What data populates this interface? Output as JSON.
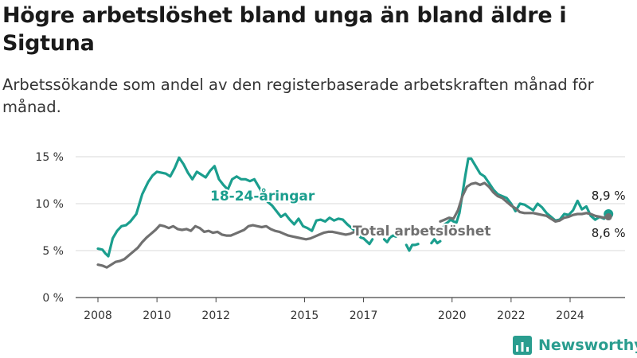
{
  "title": "Högre arbetslöshet bland unga än bland äldre i Sigtuna",
  "subtitle": "Arbetssökande som andel av den registerbaserade arbetskraften månad för månad.",
  "brand": {
    "name": "Newsworthy",
    "color": "#2a9d8f",
    "icon": "bar-chart-logo-icon"
  },
  "chart_data": {
    "type": "line",
    "ylim": [
      0,
      15
    ],
    "yticks": [
      0,
      5,
      10,
      15
    ],
    "ytick_labels": [
      "0 %",
      "5 %",
      "10 %",
      "15 %"
    ],
    "xlim": [
      2007.75,
      2025.4
    ],
    "xticks": [
      2008,
      2010,
      2012,
      2015,
      2017,
      2020,
      2022,
      2024
    ],
    "xtick_labels": [
      "2008",
      "2010",
      "2012",
      "2015",
      "2017",
      "2020",
      "2022",
      "2024"
    ],
    "grid": true,
    "series": [
      {
        "name": "18-24-åringar",
        "color": "#1b9e8e",
        "end_label": "8,9 %",
        "segments": [
          [
            [
              2008.0,
              5.2
            ],
            [
              2008.15,
              5.1
            ],
            [
              2008.25,
              4.7
            ],
            [
              2008.35,
              4.4
            ],
            [
              2008.5,
              6.3
            ],
            [
              2008.65,
              7.1
            ],
            [
              2008.8,
              7.6
            ],
            [
              2008.95,
              7.7
            ],
            [
              2009.1,
              8.1
            ],
            [
              2009.3,
              8.9
            ],
            [
              2009.5,
              11.0
            ],
            [
              2009.7,
              12.3
            ],
            [
              2009.85,
              13.0
            ],
            [
              2010.0,
              13.4
            ],
            [
              2010.15,
              13.3
            ],
            [
              2010.3,
              13.2
            ],
            [
              2010.45,
              12.9
            ],
            [
              2010.6,
              13.8
            ],
            [
              2010.75,
              14.9
            ],
            [
              2010.9,
              14.2
            ],
            [
              2011.05,
              13.3
            ],
            [
              2011.2,
              12.6
            ],
            [
              2011.35,
              13.4
            ],
            [
              2011.5,
              13.1
            ],
            [
              2011.65,
              12.8
            ],
            [
              2011.8,
              13.5
            ],
            [
              2011.95,
              14.0
            ],
            [
              2012.1,
              12.6
            ],
            [
              2012.25,
              12.0
            ],
            [
              2012.4,
              11.5
            ],
            [
              2012.55,
              12.6
            ],
            [
              2012.7,
              12.9
            ],
            [
              2012.85,
              12.6
            ],
            [
              2013.0,
              12.6
            ],
            [
              2013.15,
              12.4
            ],
            [
              2013.3,
              12.6
            ],
            [
              2013.45,
              11.8
            ],
            [
              2013.6,
              11.0
            ],
            [
              2013.75,
              10.2
            ],
            [
              2013.9,
              9.8
            ],
            [
              2014.05,
              9.2
            ],
            [
              2014.2,
              8.6
            ],
            [
              2014.35,
              8.9
            ],
            [
              2014.5,
              8.3
            ],
            [
              2014.65,
              7.8
            ],
            [
              2014.8,
              8.4
            ],
            [
              2014.95,
              7.6
            ],
            [
              2015.1,
              7.4
            ],
            [
              2015.25,
              7.1
            ],
            [
              2015.4,
              8.2
            ],
            [
              2015.55,
              8.3
            ],
            [
              2015.7,
              8.1
            ],
            [
              2015.85,
              8.5
            ],
            [
              2016.0,
              8.2
            ],
            [
              2016.15,
              8.4
            ],
            [
              2016.3,
              8.3
            ],
            [
              2016.45,
              7.8
            ],
            [
              2016.6,
              7.4
            ],
            [
              2016.75,
              7.0
            ]
          ],
          [
            [
              2016.75,
              7.0
            ],
            [
              2016.9,
              6.4
            ],
            [
              2017.0,
              6.3
            ],
            [
              2017.1,
              6.0
            ],
            [
              2017.2,
              5.7
            ],
            [
              2017.3,
              6.2
            ]
          ],
          [
            [
              2017.7,
              6.2
            ],
            [
              2017.8,
              5.9
            ],
            [
              2017.9,
              6.4
            ],
            [
              2018.0,
              6.6
            ],
            [
              2018.1,
              6.5
            ]
          ],
          [
            [
              2018.45,
              5.6
            ],
            [
              2018.55,
              5.0
            ],
            [
              2018.65,
              5.6
            ],
            [
              2018.75,
              5.6
            ],
            [
              2018.85,
              5.7
            ]
          ],
          [
            [
              2019.3,
              5.8
            ],
            [
              2019.4,
              6.2
            ],
            [
              2019.5,
              5.8
            ],
            [
              2019.6,
              6.0
            ]
          ],
          [
            [
              2019.65,
              7.0
            ],
            [
              2019.75,
              7.8
            ],
            [
              2019.85,
              8.0
            ],
            [
              2019.95,
              8.3
            ],
            [
              2020.05,
              8.1
            ],
            [
              2020.15,
              8.0
            ],
            [
              2020.25,
              9.0
            ],
            [
              2020.35,
              11.0
            ],
            [
              2020.45,
              13.0
            ],
            [
              2020.55,
              14.8
            ],
            [
              2020.65,
              14.8
            ],
            [
              2020.8,
              14.0
            ],
            [
              2020.95,
              13.2
            ],
            [
              2021.1,
              12.9
            ],
            [
              2021.25,
              12.2
            ],
            [
              2021.4,
              11.5
            ],
            [
              2021.55,
              11.0
            ],
            [
              2021.7,
              10.8
            ],
            [
              2021.85,
              10.6
            ],
            [
              2022.0,
              10.0
            ],
            [
              2022.15,
              9.2
            ],
            [
              2022.3,
              10.0
            ],
            [
              2022.45,
              9.9
            ],
            [
              2022.6,
              9.6
            ],
            [
              2022.75,
              9.3
            ],
            [
              2022.9,
              10.0
            ],
            [
              2023.05,
              9.6
            ],
            [
              2023.2,
              9.0
            ],
            [
              2023.35,
              8.6
            ],
            [
              2023.5,
              8.2
            ],
            [
              2023.65,
              8.3
            ],
            [
              2023.8,
              8.9
            ],
            [
              2023.95,
              8.8
            ],
            [
              2024.1,
              9.3
            ],
            [
              2024.25,
              10.3
            ],
            [
              2024.4,
              9.4
            ],
            [
              2024.55,
              9.7
            ],
            [
              2024.7,
              8.7
            ],
            [
              2024.85,
              8.3
            ],
            [
              2025.0,
              8.6
            ],
            [
              2025.15,
              8.4
            ],
            [
              2025.3,
              8.9
            ]
          ]
        ]
      },
      {
        "name": "Total arbetslöshet",
        "color": "#707070",
        "end_label": "8,6 %",
        "segments": [
          [
            [
              2008.0,
              3.5
            ],
            [
              2008.15,
              3.4
            ],
            [
              2008.3,
              3.2
            ],
            [
              2008.45,
              3.5
            ],
            [
              2008.6,
              3.8
            ],
            [
              2008.75,
              3.9
            ],
            [
              2008.9,
              4.1
            ],
            [
              2009.05,
              4.5
            ],
            [
              2009.2,
              4.9
            ],
            [
              2009.35,
              5.3
            ],
            [
              2009.5,
              5.9
            ],
            [
              2009.65,
              6.4
            ],
            [
              2009.8,
              6.8
            ],
            [
              2009.95,
              7.2
            ],
            [
              2010.1,
              7.7
            ],
            [
              2010.25,
              7.6
            ],
            [
              2010.4,
              7.4
            ],
            [
              2010.55,
              7.6
            ],
            [
              2010.7,
              7.3
            ],
            [
              2010.85,
              7.2
            ],
            [
              2011.0,
              7.3
            ],
            [
              2011.15,
              7.1
            ],
            [
              2011.3,
              7.6
            ],
            [
              2011.45,
              7.4
            ],
            [
              2011.6,
              7.0
            ],
            [
              2011.75,
              7.1
            ],
            [
              2011.9,
              6.9
            ],
            [
              2012.05,
              7.0
            ],
            [
              2012.2,
              6.7
            ],
            [
              2012.35,
              6.6
            ],
            [
              2012.5,
              6.6
            ],
            [
              2012.65,
              6.8
            ],
            [
              2012.8,
              7.0
            ],
            [
              2012.95,
              7.2
            ],
            [
              2013.1,
              7.6
            ],
            [
              2013.25,
              7.7
            ],
            [
              2013.4,
              7.6
            ],
            [
              2013.55,
              7.5
            ],
            [
              2013.7,
              7.6
            ],
            [
              2013.85,
              7.3
            ],
            [
              2014.0,
              7.1
            ],
            [
              2014.15,
              7.0
            ],
            [
              2014.3,
              6.8
            ],
            [
              2014.45,
              6.6
            ],
            [
              2014.6,
              6.5
            ],
            [
              2014.75,
              6.4
            ],
            [
              2014.9,
              6.3
            ],
            [
              2015.05,
              6.2
            ],
            [
              2015.2,
              6.3
            ],
            [
              2015.35,
              6.5
            ],
            [
              2015.5,
              6.7
            ],
            [
              2015.65,
              6.9
            ],
            [
              2015.8,
              7.0
            ],
            [
              2015.95,
              7.0
            ],
            [
              2016.1,
              6.9
            ],
            [
              2016.25,
              6.8
            ],
            [
              2016.4,
              6.7
            ],
            [
              2016.55,
              6.8
            ],
            [
              2016.7,
              7.0
            ]
          ],
          [
            [
              2019.6,
              8.1
            ],
            [
              2019.75,
              8.3
            ],
            [
              2019.9,
              8.5
            ],
            [
              2020.05,
              8.4
            ],
            [
              2020.2,
              9.3
            ],
            [
              2020.35,
              10.8
            ],
            [
              2020.5,
              11.8
            ],
            [
              2020.65,
              12.1
            ],
            [
              2020.8,
              12.2
            ],
            [
              2020.95,
              12.0
            ],
            [
              2021.1,
              12.2
            ],
            [
              2021.25,
              11.8
            ],
            [
              2021.4,
              11.2
            ],
            [
              2021.55,
              10.8
            ],
            [
              2021.7,
              10.6
            ],
            [
              2021.85,
              10.2
            ],
            [
              2022.0,
              9.8
            ],
            [
              2022.15,
              9.5
            ],
            [
              2022.3,
              9.1
            ],
            [
              2022.45,
              9.0
            ],
            [
              2022.6,
              9.0
            ],
            [
              2022.75,
              9.0
            ],
            [
              2022.9,
              8.9
            ],
            [
              2023.05,
              8.8
            ],
            [
              2023.2,
              8.7
            ],
            [
              2023.35,
              8.4
            ],
            [
              2023.5,
              8.1
            ],
            [
              2023.65,
              8.2
            ],
            [
              2023.8,
              8.5
            ],
            [
              2023.95,
              8.6
            ],
            [
              2024.1,
              8.8
            ],
            [
              2024.25,
              8.9
            ],
            [
              2024.4,
              8.9
            ],
            [
              2024.55,
              9.0
            ],
            [
              2024.7,
              8.9
            ],
            [
              2024.85,
              8.7
            ],
            [
              2025.0,
              8.6
            ],
            [
              2025.15,
              8.5
            ],
            [
              2025.3,
              8.6
            ]
          ]
        ]
      }
    ]
  }
}
